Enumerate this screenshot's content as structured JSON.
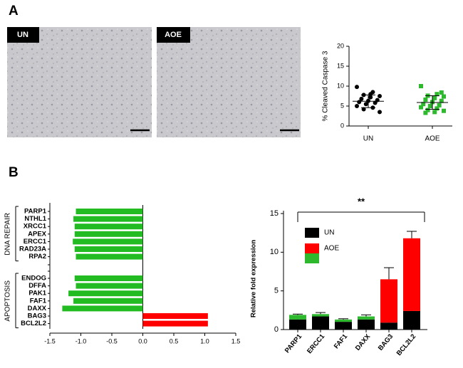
{
  "panels": [
    "A",
    "B"
  ],
  "images": [
    {
      "label": "UN"
    },
    {
      "label": "AOE"
    }
  ],
  "chart_data": [
    {
      "type": "scatter",
      "ylabel": "% Cleaved Caspase 3",
      "ylim": [
        0,
        20
      ],
      "yticks": [
        0,
        5,
        10,
        15,
        20
      ],
      "groups": [
        {
          "name": "UN",
          "color": "#000000",
          "mean": 6.2,
          "sd": 1.6,
          "values": [
            9.8,
            8.5,
            7.8,
            7.5,
            7.2,
            6.8,
            6.5,
            6.3,
            6.0,
            5.8,
            5.5,
            5.0,
            4.6,
            4.2,
            3.5,
            8.0
          ]
        },
        {
          "name": "AOE",
          "color": "#2db82d",
          "mean": 5.9,
          "sd": 1.7,
          "values": [
            10.0,
            8.0,
            7.6,
            7.4,
            7.0,
            6.6,
            6.3,
            6.0,
            5.5,
            5.2,
            5.0,
            4.7,
            4.4,
            4.0,
            3.8,
            3.5,
            3.3,
            8.4
          ]
        }
      ]
    },
    {
      "type": "barh",
      "negative_color": "#22bb22",
      "positive_color": "#ff0000",
      "xlim": [
        -1.5,
        1.5
      ],
      "xticks": [
        -1.5,
        {
          "value": -1,
          "label": "-1.0"
        },
        -0.5,
        {
          "value": 0,
          "label": "0.0"
        },
        0.5,
        {
          "value": 1,
          "label": "1.0"
        },
        1.5
      ],
      "groups": [
        {
          "name": "DNA REPAIR",
          "categories": [
            "PARP1",
            "NTHL1",
            "XRCC1",
            "APEX",
            "ERCC1",
            "RAD23A",
            "RPA2"
          ],
          "values": [
            -1.08,
            -1.12,
            -1.1,
            -1.1,
            -1.13,
            -1.1,
            -1.08
          ]
        },
        {
          "name": "APOPTOSIS",
          "categories": [
            "ENDOG",
            "DFFA",
            "PAK1",
            "FAF1",
            "DAXX",
            "BAG3",
            "BCL2L2"
          ],
          "values": [
            -1.1,
            -1.08,
            -1.2,
            -1.12,
            -1.3,
            1.05,
            1.05
          ]
        }
      ]
    },
    {
      "type": "stacked_bar",
      "ylabel": "Relative fold expression",
      "annotation": "**",
      "ylim": [
        0,
        15
      ],
      "yticks": [
        0,
        5,
        10,
        15
      ],
      "categories": [
        "PARP1",
        "ERCC1",
        "FAF1",
        "DAXX",
        "BAG3",
        "BCL2L2"
      ],
      "series": [
        {
          "name": "UN",
          "color": "#000000",
          "values": [
            1.3,
            1.7,
            1.0,
            1.3,
            0.9,
            2.4
          ],
          "errors": [
            0.1,
            0.1,
            0.05,
            0.1,
            0.1,
            0.5
          ]
        },
        {
          "name": "AOE",
          "colors": [
            "#2db82d",
            "#2db82d",
            "#2db82d",
            "#2db82d",
            "#ff0000",
            "#ff0000"
          ],
          "values": [
            0.6,
            0.3,
            0.3,
            0.4,
            5.6,
            9.4
          ],
          "errors": [
            0.1,
            0.2,
            0.1,
            0.2,
            1.5,
            0.9
          ]
        }
      ]
    }
  ]
}
